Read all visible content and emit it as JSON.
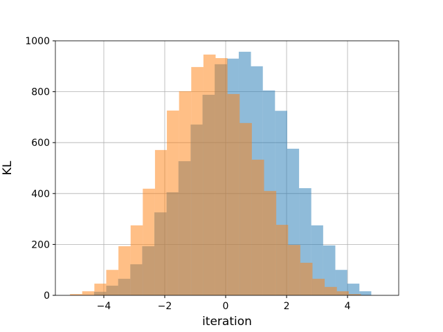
{
  "chart_data": {
    "type": "histogram",
    "xlabel": "iteration",
    "ylabel": "KL",
    "xlim": [
      -5.59,
      5.68
    ],
    "ylim": [
      0,
      1000
    ],
    "xticks": [
      {
        "value": -4,
        "label": "−4"
      },
      {
        "value": -2,
        "label": "−2"
      },
      0,
      2,
      4
    ],
    "yticks": [
      0,
      200,
      400,
      600,
      800,
      1000
    ],
    "grid": true,
    "series": [
      {
        "color": "#1f77b4",
        "alpha": 0.5,
        "bins": [
          -4.32,
          -3.92,
          -3.53,
          -3.13,
          -2.74,
          -2.34,
          -1.94,
          -1.55,
          -1.15,
          -0.76,
          -0.36,
          0.04,
          0.43,
          0.83,
          1.22,
          1.62,
          2.02,
          2.41,
          2.81,
          3.2,
          3.6,
          3.99,
          4.39,
          4.78
        ],
        "values": [
          14,
          38,
          65,
          122,
          193,
          326,
          405,
          527,
          671,
          788,
          908,
          930,
          957,
          900,
          805,
          725,
          576,
          421,
          275,
          196,
          100,
          46,
          16
        ]
      },
      {
        "color": "#ff7f0e",
        "alpha": 0.5,
        "bins": [
          -5.11,
          -4.71,
          -4.31,
          -3.92,
          -3.52,
          -3.12,
          -2.72,
          -2.32,
          -1.93,
          -1.53,
          -1.13,
          -0.73,
          -0.33,
          0.06,
          0.46,
          0.86,
          1.26,
          1.66,
          2.05,
          2.45,
          2.85,
          3.25,
          3.65,
          4.04,
          4.44
        ],
        "values": [
          5,
          16,
          46,
          100,
          193,
          275,
          419,
          571,
          726,
          802,
          897,
          946,
          932,
          791,
          677,
          533,
          410,
          277,
          198,
          128,
          65,
          33,
          16,
          5
        ]
      }
    ]
  }
}
